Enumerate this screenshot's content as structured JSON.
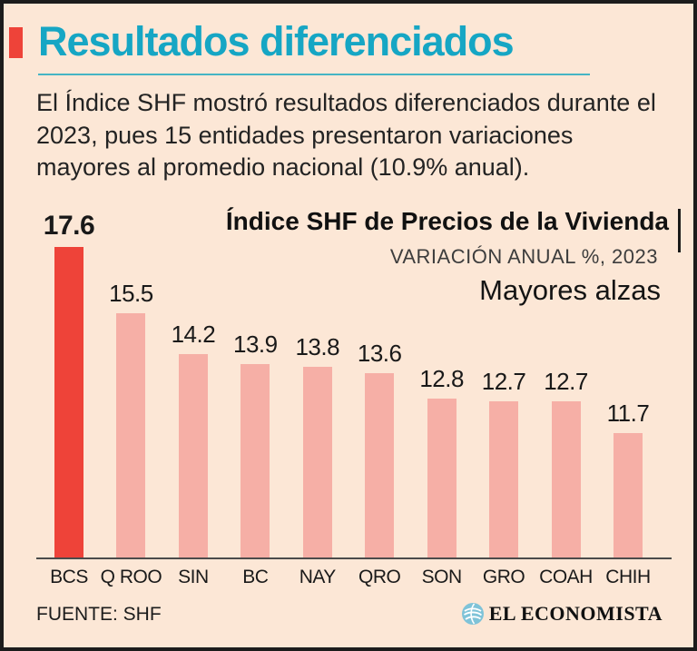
{
  "header": {
    "title": "Resultados diferenciados",
    "title_color": "#16a6c4",
    "accent_color": "#ee4339",
    "intro": "El Índice SHF mostró resultados diferenciados durante el 2023, pues 15 entidades presentaron variaciones mayores al promedio nacional (10.9% anual)."
  },
  "chart_data": {
    "type": "bar",
    "title": "Índice SHF de Precios de la Vivienda",
    "subtitle": "VARIACIÓN ANUAL %, 2023",
    "annotation": "Mayores alzas",
    "categories": [
      "BCS",
      "Q ROO",
      "SIN",
      "BC",
      "NAY",
      "QRO",
      "SON",
      "GRO",
      "COAH",
      "CHIH"
    ],
    "values": [
      17.6,
      15.5,
      14.2,
      13.9,
      13.8,
      13.6,
      12.8,
      12.7,
      12.7,
      11.7
    ],
    "highlight_index": 0,
    "bar_color": "#f6afa6",
    "highlight_color": "#ee4339",
    "value_labels_shown": true,
    "grid": false,
    "legend": "none",
    "axis_baseline_value": 7.76
  },
  "footer": {
    "source": "FUENTE: SHF",
    "brand": "EL ECONOMISTA",
    "brand_icon": "el-economista-globe-icon",
    "brand_icon_color": "#7fc3d8"
  }
}
